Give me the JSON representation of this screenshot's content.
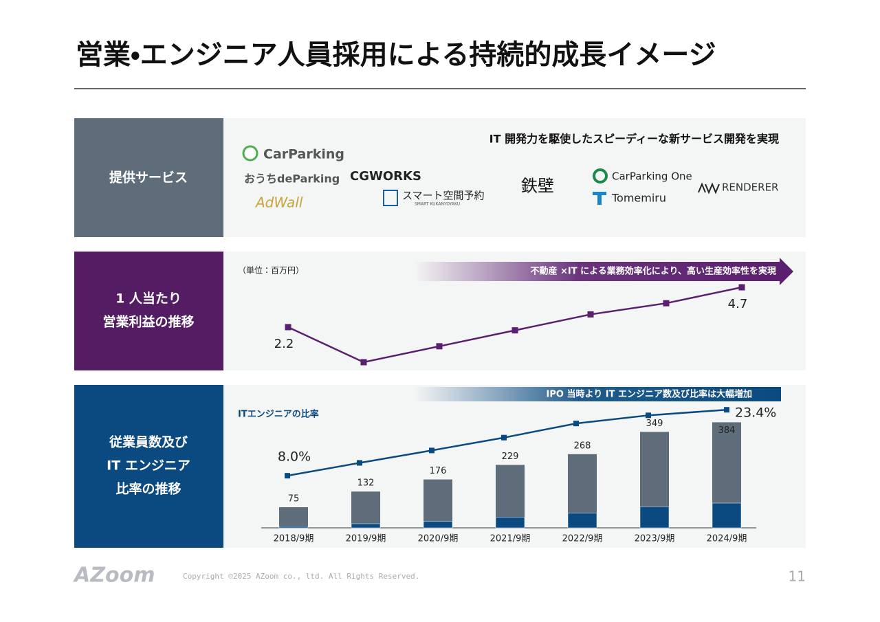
{
  "header": {
    "title": "営業・エンジニア人員採用による持続的成長イメージ"
  },
  "services": {
    "label": "提供サービス",
    "headline": "IT 開発力を駆使したスピーディーな新サービス開発を実現",
    "logos": [
      "CarParking",
      "おうちdeParking",
      "AdWall",
      "CGWORKS",
      "スマート空間予約",
      "SMART KUKANYOYAKU",
      "鉄壁",
      "CarParking One",
      "Tomemiru",
      "RENDERER"
    ]
  },
  "chart_data": [
    {
      "type": "line",
      "label_lines": [
        "1 人当たり",
        "営業利益の推移"
      ],
      "unit_note": "（単位：百万円）",
      "banner": "不動産 ×IT による業務効率化により、高い生産効率性を実現",
      "color": "#5a1f6e",
      "categories": [
        "2018/9期",
        "2019/9期",
        "2020/9期",
        "2021/9期",
        "2022/9期",
        "2023/9期",
        "2024/9期"
      ],
      "values": [
        2.2,
        0.0,
        1.0,
        2.0,
        3.0,
        3.7,
        4.7
      ],
      "value_labels": [
        "2.2",
        null,
        null,
        null,
        null,
        null,
        "4.7"
      ]
    },
    {
      "type": "bar-line",
      "label_lines": [
        "従業員数及び",
        "IT エンジニア",
        "比率の推移"
      ],
      "banner": "IPO 当時より IT エンジニア数及び比率は大幅増加",
      "line_label": "ITエンジニアの比率",
      "categories": [
        "2018/9期",
        "2019/9期",
        "2020/9期",
        "2021/9期",
        "2022/9期",
        "2023/9期",
        "2024/9期"
      ],
      "totals": {
        "color": "#5f6d7b",
        "values": [
          75,
          132,
          176,
          229,
          268,
          349,
          384
        ]
      },
      "engineers": {
        "color": "#0a4a80",
        "values": [
          6,
          15,
          24,
          39,
          54,
          77,
          90
        ]
      },
      "ratio": {
        "color": "#0a4a80",
        "values": [
          8.0,
          11.0,
          13.9,
          16.9,
          20.2,
          22.1,
          23.4
        ],
        "value_labels": [
          "8.0%",
          null,
          null,
          null,
          null,
          null,
          "23.4%"
        ]
      }
    }
  ],
  "footer": {
    "logo": "AZoom",
    "copyright": "Copyright ©2025 AZoom co., ltd. All Rights Reserved.",
    "page": "11"
  }
}
